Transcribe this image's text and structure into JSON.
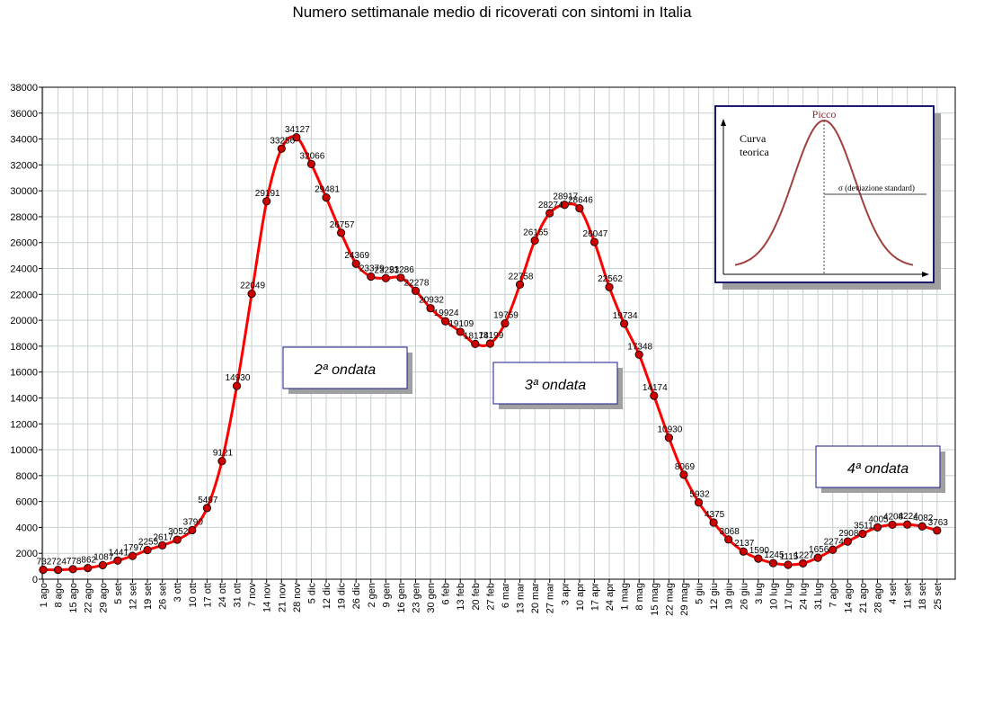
{
  "title": "Numero settimanale medio di ricoverati con sintomi in Italia",
  "chart_data": {
    "type": "line",
    "title": "Numero settimanale medio di ricoverati con sintomi in Italia",
    "xlabel": "",
    "ylabel": "",
    "ylim": [
      0,
      38000
    ],
    "y_ticks": [
      0,
      2000,
      4000,
      6000,
      8000,
      10000,
      12000,
      14000,
      16000,
      18000,
      20000,
      22000,
      24000,
      26000,
      28000,
      30000,
      32000,
      34000,
      36000,
      38000
    ],
    "grid": true,
    "line_color": "#ff0000",
    "marker_color": "#cc0000",
    "categories": [
      "1 ago",
      "8 ago",
      "15 ago",
      "22 ago",
      "29 ago",
      "5 set",
      "12 set",
      "19 set",
      "26 set",
      "3 ott",
      "10 ott",
      "17 ott",
      "24 ott",
      "31 ott",
      "7 nov",
      "14 nov",
      "21 nov",
      "28 nov",
      "5 dic",
      "12 dic",
      "19 dic",
      "26 dic",
      "2 gen",
      "9 gen",
      "16 gen",
      "23 gen",
      "30 gen",
      "6 feb",
      "13 feb",
      "20 feb",
      "27 feb",
      "6 mar",
      "13 mar",
      "20 mar",
      "27 mar",
      "3 apr",
      "10 apr",
      "17 apr",
      "24 apr",
      "1 mag",
      "8 mag",
      "15 mag",
      "22 mag",
      "29 mag",
      "5 giu",
      "12 giu",
      "19 giu",
      "26 giu",
      "3 lug",
      "10 lug",
      "17 lug",
      "24 lug",
      "31 lug",
      "7 ago",
      "14 ago",
      "21 ago",
      "28 ago",
      "4 set",
      "11 set",
      "18 set",
      "25 set"
    ],
    "series": [
      {
        "values": [
          732,
          724,
          778,
          862,
          1087,
          1441,
          1797,
          2255,
          2617,
          3052,
          3790,
          5497,
          9121,
          14930,
          22049,
          29191,
          33256,
          34127,
          32066,
          29481,
          26757,
          24369,
          23379,
          23251,
          23286,
          22278,
          20932,
          19924,
          19109,
          18174,
          18199,
          19759,
          22758,
          26165,
          28274,
          28917,
          28646,
          26047,
          22562,
          19734,
          17348,
          14174,
          10930,
          8069,
          5932,
          4375,
          3068,
          2137,
          1590,
          1245,
          1115,
          1227,
          1656,
          2274,
          2908,
          3511,
          4005,
          4208,
          4224,
          4082,
          3763
        ],
        "labels": [
          "732",
          "724",
          "778",
          "862",
          "1087",
          "1441",
          "1797",
          "2255",
          "2617",
          "3052",
          "3790",
          "5497",
          "9121",
          "14930",
          "22049",
          "29191",
          "33256",
          "34127",
          "32066",
          "29481",
          "26757",
          "24369",
          "23379",
          "23251",
          "23286",
          "22278",
          "20932",
          "19924",
          "19109",
          "18174",
          "18199",
          "19759",
          "22758",
          "26165",
          "28274",
          "28917",
          "28646",
          "26047",
          "22562",
          "19734",
          "17348",
          "14174",
          "10930",
          "8069",
          "5932",
          "4375",
          "3068",
          "2137",
          "1590",
          "1245",
          "1115",
          "1227",
          "1656",
          "2274",
          "2908",
          "3511",
          "4005",
          "4208",
          "4224",
          "4082",
          "3763"
        ]
      }
    ],
    "annotations": [
      {
        "id": "wave2",
        "text": "2ª ondata"
      },
      {
        "id": "wave3",
        "text": "3ª ondata"
      },
      {
        "id": "wave4",
        "text": "4ª ondata"
      }
    ],
    "inset": {
      "peak_label": "Picco",
      "curve_label_line1": "Curva",
      "curve_label_line2": "teorica",
      "sigma_label": "σ  (deviazione standard)"
    }
  }
}
